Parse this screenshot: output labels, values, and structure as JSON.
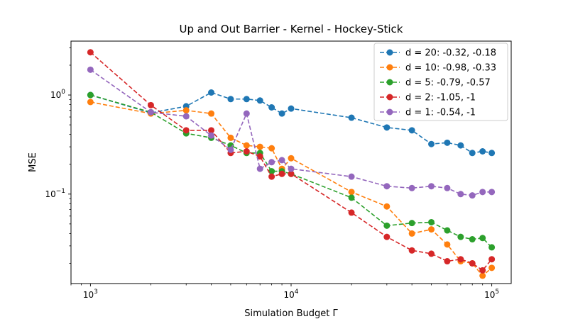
{
  "chart_data": {
    "type": "line",
    "title": "Up and Out Barrier - Kernel - Hockey-Stick",
    "xlabel": "Simulation Budget Γ",
    "ylabel": "MSE",
    "xscale": "log",
    "yscale": "log",
    "xlim": [
      800,
      125000
    ],
    "ylim": [
      0.0125,
      3.5
    ],
    "xticks": [
      {
        "value": 1000,
        "base": "10",
        "exp": "3"
      },
      {
        "value": 10000,
        "base": "10",
        "exp": "4"
      },
      {
        "value": 100000,
        "base": "10",
        "exp": "5"
      }
    ],
    "yticks": [
      {
        "value": 1,
        "label": "10⁰",
        "base": "10",
        "exp": "0"
      },
      {
        "value": 0.1,
        "label": "10⁻¹",
        "base": "10",
        "exp": "−1"
      }
    ],
    "grid": false,
    "legend_position": "top-right",
    "x": [
      1000,
      2000,
      3000,
      4000,
      5000,
      6000,
      7000,
      8000,
      9000,
      10000,
      20000,
      30000,
      40000,
      50000,
      60000,
      70000,
      80000,
      90000,
      100000
    ],
    "series": [
      {
        "name": "d = 20: -0.32, -0.18",
        "color": "#1f77b4",
        "values": [
          1.0,
          0.66,
          0.77,
          1.06,
          0.91,
          0.91,
          0.88,
          0.75,
          0.65,
          0.73,
          0.59,
          0.47,
          0.44,
          0.32,
          0.33,
          0.31,
          0.26,
          0.27,
          0.26
        ]
      },
      {
        "name": "d = 10: -0.98, -0.33",
        "color": "#ff7f0e",
        "values": [
          0.85,
          0.65,
          0.7,
          0.65,
          0.37,
          0.31,
          0.3,
          0.29,
          0.18,
          0.23,
          0.105,
          0.075,
          0.04,
          0.044,
          0.031,
          0.021,
          0.02,
          0.015,
          0.018
        ]
      },
      {
        "name": "d = 5: -0.79, -0.57",
        "color": "#2ca02c",
        "values": [
          1.0,
          0.67,
          0.41,
          0.37,
          0.31,
          0.26,
          0.26,
          0.17,
          0.17,
          0.16,
          0.092,
          0.048,
          0.051,
          0.052,
          0.043,
          0.037,
          0.035,
          0.036,
          0.029
        ]
      },
      {
        "name": "d = 2: -1.05, -1",
        "color": "#d62728",
        "values": [
          2.7,
          0.79,
          0.44,
          0.44,
          0.26,
          0.27,
          0.24,
          0.15,
          0.16,
          0.16,
          0.065,
          0.037,
          0.027,
          0.025,
          0.021,
          0.022,
          0.02,
          0.017,
          0.022
        ]
      },
      {
        "name": "d = 1: -0.54, -1",
        "color": "#9467bd",
        "values": [
          1.8,
          0.67,
          0.61,
          0.39,
          0.28,
          0.65,
          0.18,
          0.21,
          0.22,
          0.18,
          0.15,
          0.12,
          0.115,
          0.12,
          0.115,
          0.1,
          0.097,
          0.105,
          0.105
        ]
      }
    ]
  }
}
